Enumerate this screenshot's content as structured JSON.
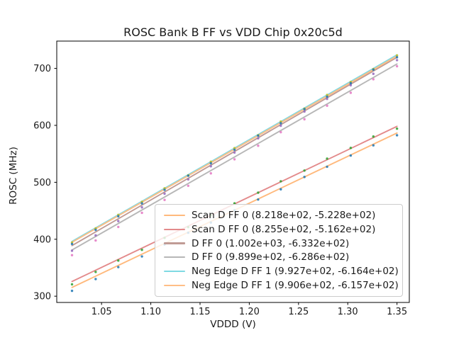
{
  "figure": {
    "title": "ROSC Bank B FF vs VDD Chip 0x20c5d"
  },
  "chart_data": {
    "type": "scatter",
    "title": "ROSC Bank B FF vs VDD Chip 0x20c5d",
    "xlabel": "VDDD (V)",
    "ylabel": "ROSC (MHz)",
    "xlim": [
      1.0045,
      1.3625
    ],
    "ylim": [
      289,
      748
    ],
    "xticks": [
      1.05,
      1.1,
      1.15,
      1.2,
      1.25,
      1.3,
      1.35
    ],
    "yticks": [
      300,
      400,
      500,
      600,
      700
    ],
    "grid": false,
    "legend_position": "lower right inside",
    "x": [
      1.02,
      1.044,
      1.067,
      1.091,
      1.114,
      1.138,
      1.161,
      1.185,
      1.209,
      1.232,
      1.256,
      1.279,
      1.303,
      1.326,
      1.35
    ],
    "series": [
      {
        "label": "Scan D FF 0 (8.218e+02, -5.228e+02)",
        "fit_slope": 821.8,
        "fit_intercept": -522.8,
        "line_color": "#ffb97c",
        "marker_color": "#1f77b4",
        "y": [
          309.4,
          330.1,
          351.1,
          369.8,
          390.7,
          411.4,
          429.3,
          451.0,
          469.8,
          487.7,
          509.4,
          527.3,
          547.0,
          564.9,
          582.6
        ]
      },
      {
        "label": "Scan D FF 0 (8.255e+02, -5.162e+02)",
        "fit_slope": 825.5,
        "fit_intercept": -516.2,
        "line_color": "#e38a8b",
        "marker_color": "#2ca02c",
        "y": [
          320.8,
          342.6,
          362.6,
          381.4,
          402.4,
          421.2,
          442.2,
          463.0,
          481.8,
          501.8,
          520.6,
          541.6,
          560.4,
          580.4,
          594.2
        ]
      },
      {
        "label": "D FF 0 (1.002e+03, -6.332e+02)",
        "fit_slope": 1002.0,
        "fit_intercept": -633.2,
        "line_color": "#c09b95",
        "marker_color": "#9467bd",
        "y": [
          379.8,
          406.9,
          431.9,
          456.0,
          480.0,
          505.1,
          528.1,
          552.2,
          577.2,
          599.3,
          624.3,
          646.4,
          670.4,
          690.5,
          714.5
        ]
      },
      {
        "label": "D FF 0 (9.899e+02, -6.286e+02)",
        "fit_slope": 989.9,
        "fit_intercept": -628.6,
        "line_color": "#b7b7b7",
        "marker_color": "#e377c2",
        "y": [
          372.1,
          397.9,
          421.6,
          446.4,
          469.1,
          493.9,
          515.7,
          540.4,
          564.2,
          588.0,
          610.7,
          634.5,
          657.2,
          681.0,
          703.8
        ]
      },
      {
        "label": "Neg Edge D FF 1 (9.927e+02, -6.164e+02)",
        "fit_slope": 992.7,
        "fit_intercept": -616.4,
        "line_color": "#7ed9e2",
        "marker_color": "#bcbd22",
        "y": [
          394.2,
          419.0,
          442.9,
          465.7,
          489.5,
          512.3,
          536.2,
          560.0,
          582.8,
          606.7,
          629.5,
          653.4,
          676.2,
          699.0,
          722.8
        ]
      },
      {
        "label": "Neg Edge D FF 1 (9.906e+02, -6.157e+02)",
        "fit_slope": 990.6,
        "fit_intercept": -615.7,
        "line_color": "#ffbe86",
        "marker_color": "#1f77b4",
        "y": [
          391.7,
          416.5,
          440.3,
          463.0,
          486.8,
          511.6,
          533.4,
          557.2,
          581.9,
          603.7,
          628.5,
          650.3,
          674.0,
          697.8,
          719.6
        ]
      }
    ]
  }
}
